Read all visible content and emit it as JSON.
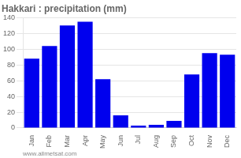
{
  "chart_data": {
    "type": "bar",
    "title": "Hakkari : precipitation (mm)",
    "categories": [
      "Jan",
      "Feb",
      "Mar",
      "Apr",
      "May",
      "Jun",
      "Jul",
      "Aug",
      "Sep",
      "Oct",
      "Nov",
      "Dec"
    ],
    "values": [
      88,
      104,
      130,
      135,
      62,
      16,
      3,
      4,
      9,
      68,
      95,
      93
    ],
    "color": "#0000ee",
    "ylim": [
      0,
      140
    ],
    "yticks": [
      0,
      20,
      40,
      60,
      80,
      100,
      120,
      140
    ],
    "grid": true,
    "annotations": [
      "www.allmetsat.com"
    ]
  }
}
